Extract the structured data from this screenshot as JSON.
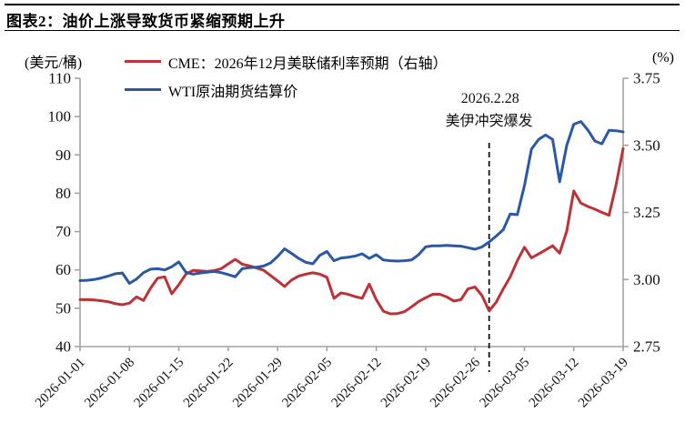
{
  "header": {
    "figure_label": "图表2：",
    "title": "图表2：油价上涨导致货币紧缩预期上升"
  },
  "chart_data": {
    "type": "line",
    "title": "图表2：油价上涨导致货币紧缩预期上升",
    "left_axis": {
      "label": "(美元/桶)",
      "min": 40,
      "max": 110,
      "ticks": [
        110,
        100,
        90,
        80,
        70,
        60,
        50,
        40
      ]
    },
    "right_axis": {
      "label": "(%)",
      "min": 2.75,
      "max": 3.75,
      "ticks": [
        "3.75",
        "3.50",
        "3.25",
        "3.00",
        "2.75"
      ]
    },
    "grid": false,
    "legend_position": "top-left",
    "x_tick_every": 7,
    "x_tick_labels": [
      "2026-01-01",
      "2026-01-08",
      "2026-01-15",
      "2026-01-22",
      "2026-01-29",
      "2026-02-05",
      "2026-02-12",
      "2026-02-19",
      "2026-02-26",
      "2026-03-05",
      "2026-03-12",
      "2026-03-19"
    ],
    "x": [
      "2026-01-01",
      "2026-01-02",
      "2026-01-03",
      "2026-01-04",
      "2026-01-05",
      "2026-01-06",
      "2026-01-07",
      "2026-01-08",
      "2026-01-09",
      "2026-01-10",
      "2026-01-11",
      "2026-01-12",
      "2026-01-13",
      "2026-01-14",
      "2026-01-15",
      "2026-01-16",
      "2026-01-17",
      "2026-01-18",
      "2026-01-19",
      "2026-01-20",
      "2026-01-21",
      "2026-01-22",
      "2026-01-23",
      "2026-01-24",
      "2026-01-25",
      "2026-01-26",
      "2026-01-27",
      "2026-01-28",
      "2026-01-29",
      "2026-01-30",
      "2026-01-31",
      "2026-02-01",
      "2026-02-02",
      "2026-02-03",
      "2026-02-04",
      "2026-02-05",
      "2026-02-06",
      "2026-02-07",
      "2026-02-08",
      "2026-02-09",
      "2026-02-10",
      "2026-02-11",
      "2026-02-12",
      "2026-02-13",
      "2026-02-14",
      "2026-02-15",
      "2026-02-16",
      "2026-02-17",
      "2026-02-18",
      "2026-02-19",
      "2026-02-20",
      "2026-02-21",
      "2026-02-22",
      "2026-02-23",
      "2026-02-24",
      "2026-02-25",
      "2026-02-26",
      "2026-02-27",
      "2026-02-28",
      "2026-03-01",
      "2026-03-02",
      "2026-03-03",
      "2026-03-04",
      "2026-03-05",
      "2026-03-06",
      "2026-03-07",
      "2026-03-08",
      "2026-03-09",
      "2026-03-10",
      "2026-03-11",
      "2026-03-12",
      "2026-03-13",
      "2026-03-14",
      "2026-03-15",
      "2026-03-16",
      "2026-03-17",
      "2026-03-18",
      "2026-03-19"
    ],
    "series": [
      {
        "name": "CME：2026年12月美联储利率预期（右轴）",
        "axis": "right",
        "unit": "%",
        "color": "#bd3137",
        "values": [
          2.925,
          2.925,
          2.924,
          2.921,
          2.917,
          2.91,
          2.906,
          2.912,
          2.935,
          2.922,
          2.968,
          3.005,
          3.01,
          2.947,
          2.98,
          3.02,
          3.034,
          3.032,
          3.03,
          3.033,
          3.04,
          3.058,
          3.075,
          3.057,
          3.051,
          3.043,
          3.035,
          3.015,
          2.995,
          2.974,
          2.998,
          3.013,
          3.02,
          3.025,
          3.02,
          3.008,
          2.93,
          2.95,
          2.945,
          2.936,
          2.93,
          2.983,
          2.925,
          2.882,
          2.872,
          2.873,
          2.88,
          2.898,
          2.918,
          2.932,
          2.945,
          2.945,
          2.935,
          2.92,
          2.925,
          2.965,
          2.972,
          2.94,
          2.883,
          2.915,
          2.965,
          3.01,
          3.07,
          3.12,
          3.081,
          3.095,
          3.11,
          3.126,
          3.098,
          3.18,
          3.33,
          3.285,
          3.272,
          3.262,
          3.25,
          3.239,
          3.352,
          3.488
        ]
      },
      {
        "name": "WTI原油期货结算价",
        "axis": "left",
        "unit": "美元/桶",
        "color": "#2b58a6",
        "values": [
          57.2,
          57.3,
          57.5,
          57.9,
          58.4,
          59.0,
          59.2,
          56.5,
          57.6,
          59.3,
          60.2,
          60.3,
          60.0,
          60.8,
          62.1,
          59.4,
          58.9,
          59.2,
          59.4,
          59.6,
          59.3,
          58.8,
          58.2,
          60.3,
          60.6,
          60.7,
          61.0,
          61.8,
          63.5,
          65.5,
          64.3,
          63.0,
          62.0,
          61.6,
          63.8,
          64.8,
          62.4,
          63.1,
          63.3,
          63.6,
          64.2,
          63.0,
          64.0,
          62.6,
          62.4,
          62.3,
          62.4,
          62.6,
          64.0,
          66.0,
          66.3,
          66.3,
          66.4,
          66.3,
          66.2,
          65.8,
          65.4,
          66.0,
          67.3,
          68.8,
          70.5,
          74.6,
          74.4,
          82.0,
          91.5,
          94.0,
          95.2,
          94.0,
          83.0,
          92.5,
          98.0,
          98.7,
          96.5,
          93.6,
          92.9,
          96.4,
          96.3,
          96.0
        ]
      }
    ],
    "annotation": {
      "date": "2026-02-28",
      "lines": [
        "2026.2.28",
        "美伊冲突爆发"
      ],
      "style": "dashed-vertical-line"
    }
  },
  "colors": {
    "cme_red": "#bd3137",
    "wti_blue": "#2b58a6",
    "axis_gray": "#a3a3a3",
    "text_black": "#111111"
  }
}
